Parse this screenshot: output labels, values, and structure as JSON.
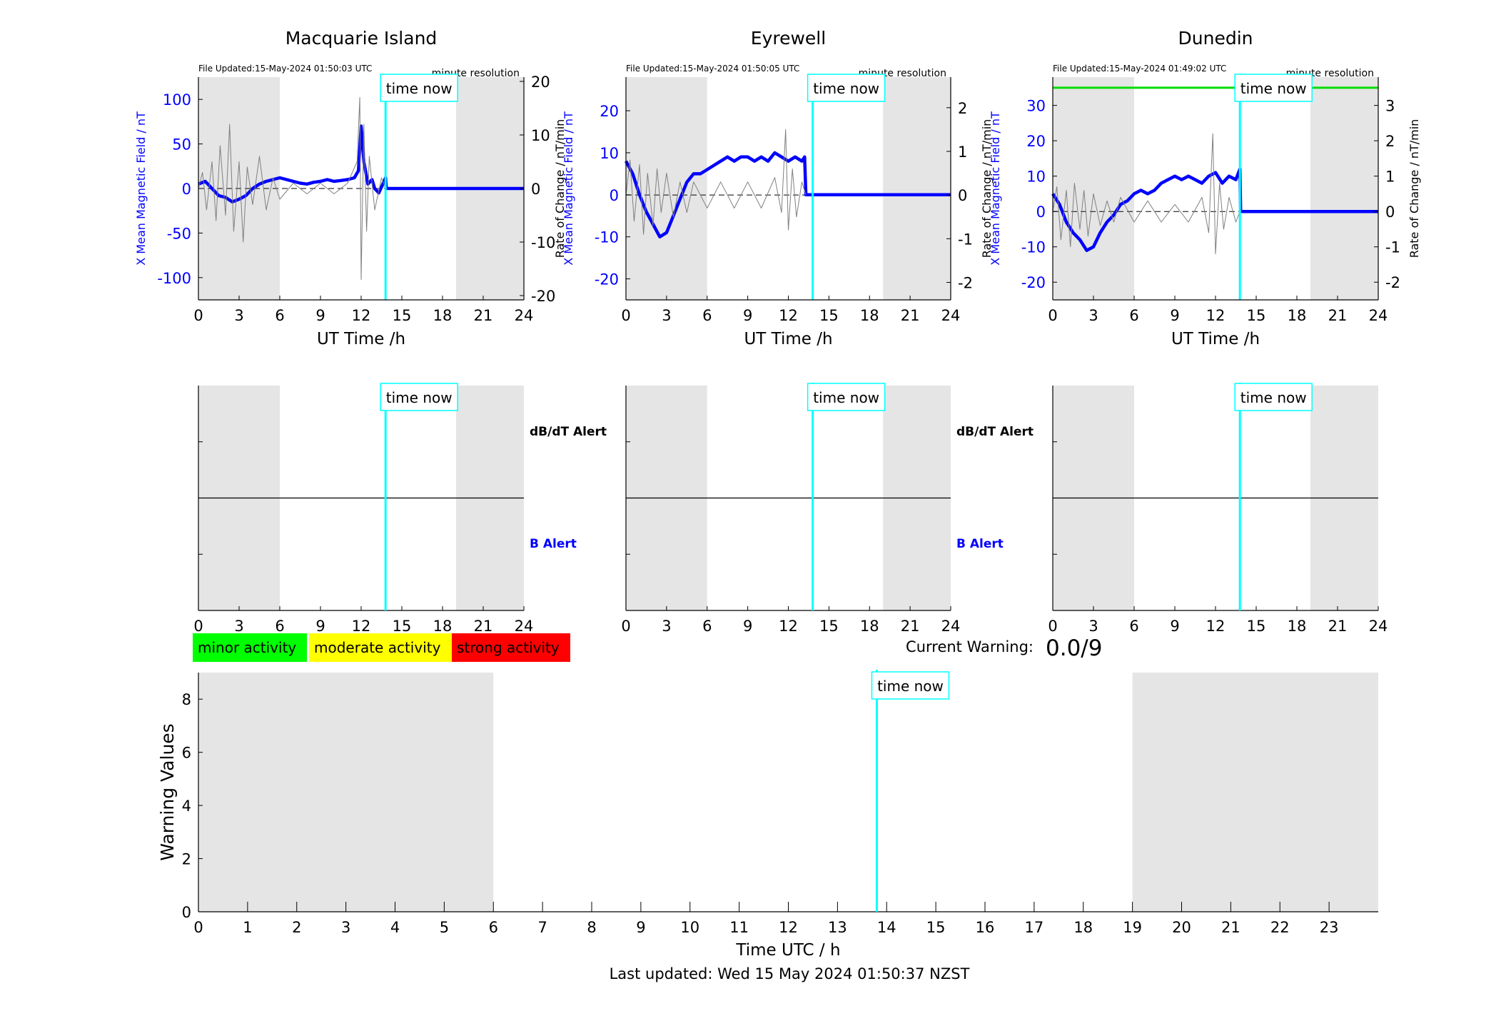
{
  "chart_data": [
    {
      "type": "line",
      "title": "Macquarie Island",
      "file_updated": "File Updated:15-May-2024 01:50:03 UTC",
      "resolution_label": "minute resolution",
      "xlabel": "UT Time /h",
      "ylabel_left": "X Mean Magnetic Field / nT",
      "ylabel_right": "Rate of Change / nT/min",
      "xlim": [
        0,
        24
      ],
      "xticks": [
        0,
        3,
        6,
        9,
        12,
        15,
        18,
        21,
        24
      ],
      "ylim_left": [
        -125,
        125
      ],
      "yticks_left": [
        -100,
        -50,
        0,
        50,
        100
      ],
      "ylim_right": [
        -20.8,
        20.8
      ],
      "yticks_right": [
        -20,
        -10,
        0,
        10,
        20
      ],
      "night_shading": [
        [
          0,
          6
        ],
        [
          19,
          24
        ]
      ],
      "time_now": 13.8,
      "time_now_label": "time now",
      "series": [
        {
          "role": "field",
          "color": "#0000ff",
          "points": [
            [
              0,
              5
            ],
            [
              0.5,
              8
            ],
            [
              1,
              0
            ],
            [
              1.5,
              -8
            ],
            [
              2,
              -10
            ],
            [
              2.5,
              -15
            ],
            [
              3,
              -12
            ],
            [
              3.5,
              -8
            ],
            [
              4,
              0
            ],
            [
              4.5,
              5
            ],
            [
              5,
              8
            ],
            [
              5.5,
              10
            ],
            [
              6,
              12
            ],
            [
              6.5,
              10
            ],
            [
              7,
              8
            ],
            [
              7.5,
              6
            ],
            [
              8,
              5
            ],
            [
              8.5,
              7
            ],
            [
              9,
              8
            ],
            [
              9.5,
              10
            ],
            [
              10,
              8
            ],
            [
              10.5,
              9
            ],
            [
              11,
              10
            ],
            [
              11.5,
              12
            ],
            [
              11.8,
              20
            ],
            [
              12,
              70
            ],
            [
              12.2,
              30
            ],
            [
              12.5,
              5
            ],
            [
              12.8,
              10
            ],
            [
              13,
              0
            ],
            [
              13.3,
              -5
            ],
            [
              13.6,
              5
            ],
            [
              13.8,
              12
            ],
            [
              13.85,
              0
            ],
            [
              24,
              0
            ]
          ]
        },
        {
          "role": "rate",
          "color": "#808080",
          "points": [
            [
              0,
              0
            ],
            [
              0.3,
              3
            ],
            [
              0.6,
              -4
            ],
            [
              1,
              5
            ],
            [
              1.3,
              -6
            ],
            [
              1.6,
              8
            ],
            [
              2,
              -5
            ],
            [
              2.3,
              12
            ],
            [
              2.6,
              -8
            ],
            [
              3,
              5
            ],
            [
              3.3,
              -10
            ],
            [
              3.6,
              4
            ],
            [
              4,
              -3
            ],
            [
              4.5,
              6
            ],
            [
              5,
              -4
            ],
            [
              5.5,
              2
            ],
            [
              6,
              -2
            ],
            [
              7,
              1
            ],
            [
              8,
              -1
            ],
            [
              9,
              1
            ],
            [
              10,
              -1
            ],
            [
              11,
              1
            ],
            [
              11.7,
              5
            ],
            [
              11.9,
              17
            ],
            [
              12,
              -17
            ],
            [
              12.2,
              12
            ],
            [
              12.4,
              -8
            ],
            [
              12.6,
              6
            ],
            [
              13,
              -4
            ],
            [
              13.5,
              2
            ],
            [
              13.8,
              0
            ]
          ]
        }
      ]
    },
    {
      "type": "line",
      "title": "Eyrewell",
      "file_updated": "File Updated:15-May-2024 01:50:05 UTC",
      "resolution_label": "minute resolution",
      "xlabel": "UT Time /h",
      "ylabel_left": "X Mean Magnetic Field / nT",
      "ylabel_right": "Rate of Change / nT/min",
      "xlim": [
        0,
        24
      ],
      "xticks": [
        0,
        3,
        6,
        9,
        12,
        15,
        18,
        21,
        24
      ],
      "ylim_left": [
        -25,
        28
      ],
      "yticks_left": [
        -20,
        -10,
        0,
        10,
        20
      ],
      "ylim_right": [
        -2.4,
        2.7
      ],
      "yticks_right": [
        -2,
        -1,
        0,
        1,
        2
      ],
      "night_shading": [
        [
          0,
          6
        ],
        [
          19,
          24
        ]
      ],
      "time_now": 13.8,
      "time_now_label": "time now",
      "series": [
        {
          "role": "field",
          "color": "#0000ff",
          "points": [
            [
              0,
              8
            ],
            [
              0.5,
              5
            ],
            [
              1,
              0
            ],
            [
              1.5,
              -4
            ],
            [
              2,
              -7
            ],
            [
              2.5,
              -10
            ],
            [
              3,
              -9
            ],
            [
              3.5,
              -5
            ],
            [
              4,
              -1
            ],
            [
              4.5,
              3
            ],
            [
              5,
              5
            ],
            [
              5.5,
              5
            ],
            [
              6,
              6
            ],
            [
              6.5,
              7
            ],
            [
              7,
              8
            ],
            [
              7.5,
              9
            ],
            [
              8,
              8
            ],
            [
              8.5,
              9
            ],
            [
              9,
              9
            ],
            [
              9.5,
              8
            ],
            [
              10,
              9
            ],
            [
              10.5,
              8
            ],
            [
              11,
              10
            ],
            [
              11.5,
              9
            ],
            [
              12,
              8
            ],
            [
              12.5,
              9
            ],
            [
              13,
              8
            ],
            [
              13.2,
              9
            ],
            [
              13.3,
              0
            ],
            [
              24,
              0
            ]
          ]
        },
        {
          "role": "rate",
          "color": "#808080",
          "points": [
            [
              0,
              0
            ],
            [
              0.3,
              0.8
            ],
            [
              0.6,
              -0.6
            ],
            [
              1,
              0.7
            ],
            [
              1.3,
              -0.9
            ],
            [
              1.6,
              0.5
            ],
            [
              2,
              -0.7
            ],
            [
              2.3,
              0.6
            ],
            [
              2.6,
              -0.4
            ],
            [
              3,
              0.5
            ],
            [
              3.5,
              -0.5
            ],
            [
              4,
              0.3
            ],
            [
              4.5,
              -0.4
            ],
            [
              5,
              0.3
            ],
            [
              6,
              -0.3
            ],
            [
              7,
              0.3
            ],
            [
              8,
              -0.3
            ],
            [
              9,
              0.3
            ],
            [
              10,
              -0.3
            ],
            [
              11,
              0.4
            ],
            [
              11.5,
              -0.4
            ],
            [
              11.8,
              1.5
            ],
            [
              12,
              -0.8
            ],
            [
              12.3,
              0.6
            ],
            [
              12.6,
              -0.5
            ],
            [
              13,
              0.3
            ],
            [
              13.3,
              0
            ]
          ]
        }
      ]
    },
    {
      "type": "line",
      "title": "Dunedin",
      "file_updated": "File Updated:15-May-2024 01:49:02 UTC",
      "resolution_label": "minute resolution",
      "xlabel": "UT Time /h",
      "ylabel_left": "X Mean Magnetic Field / nT",
      "ylabel_right": "Rate of Change / nT/min",
      "xlim": [
        0,
        24
      ],
      "xticks": [
        0,
        3,
        6,
        9,
        12,
        15,
        18,
        21,
        24
      ],
      "ylim_left": [
        -25,
        38
      ],
      "yticks_left": [
        -20,
        -10,
        0,
        10,
        20,
        30
      ],
      "ylim_right": [
        -2.5,
        3.8
      ],
      "yticks_right": [
        -2,
        -1,
        0,
        1,
        2,
        3
      ],
      "night_shading": [
        [
          0,
          6
        ],
        [
          19,
          24
        ]
      ],
      "time_now": 13.8,
      "time_now_label": "time now",
      "threshold_line": {
        "value": 35,
        "color": "#00dd00"
      },
      "series": [
        {
          "role": "field",
          "color": "#0000ff",
          "points": [
            [
              0,
              5
            ],
            [
              0.5,
              2
            ],
            [
              1,
              -3
            ],
            [
              1.5,
              -6
            ],
            [
              2,
              -8
            ],
            [
              2.5,
              -11
            ],
            [
              3,
              -10
            ],
            [
              3.5,
              -6
            ],
            [
              4,
              -3
            ],
            [
              4.5,
              -1
            ],
            [
              5,
              2
            ],
            [
              5.5,
              3
            ],
            [
              6,
              5
            ],
            [
              6.5,
              6
            ],
            [
              7,
              5
            ],
            [
              7.5,
              6
            ],
            [
              8,
              8
            ],
            [
              8.5,
              9
            ],
            [
              9,
              10
            ],
            [
              9.5,
              9
            ],
            [
              10,
              10
            ],
            [
              10.5,
              9
            ],
            [
              11,
              8
            ],
            [
              11.5,
              10
            ],
            [
              12,
              11
            ],
            [
              12.5,
              8
            ],
            [
              13,
              10
            ],
            [
              13.5,
              9
            ],
            [
              13.8,
              12
            ],
            [
              13.85,
              0
            ],
            [
              24,
              0
            ]
          ]
        },
        {
          "role": "rate",
          "color": "#808080",
          "points": [
            [
              0,
              0
            ],
            [
              0.3,
              0.7
            ],
            [
              0.6,
              -0.8
            ],
            [
              1,
              0.6
            ],
            [
              1.3,
              -1
            ],
            [
              1.6,
              0.8
            ],
            [
              2,
              -0.5
            ],
            [
              2.3,
              0.6
            ],
            [
              2.6,
              -0.7
            ],
            [
              3,
              0.5
            ],
            [
              3.5,
              -0.4
            ],
            [
              4,
              0.3
            ],
            [
              4.5,
              -0.3
            ],
            [
              5,
              0.4
            ],
            [
              6,
              -0.3
            ],
            [
              7,
              0.3
            ],
            [
              8,
              -0.3
            ],
            [
              9,
              0.2
            ],
            [
              10,
              -0.3
            ],
            [
              11,
              0.4
            ],
            [
              11.5,
              -0.6
            ],
            [
              11.8,
              2.2
            ],
            [
              12,
              -1.2
            ],
            [
              12.3,
              0.8
            ],
            [
              12.6,
              -0.5
            ],
            [
              13,
              0.4
            ],
            [
              13.5,
              -0.3
            ],
            [
              13.8,
              0
            ]
          ]
        }
      ]
    },
    {
      "type": "line",
      "panel": "alerts",
      "xlim": [
        0,
        24
      ],
      "xticks": [
        0,
        3,
        6,
        9,
        12,
        15,
        18,
        21,
        24
      ],
      "dbdt_label": "dB/dT Alert",
      "b_label": "B Alert",
      "time_now": 13.8,
      "time_now_label": "time now",
      "night_shading": [
        [
          0,
          6
        ],
        [
          19,
          24
        ]
      ]
    },
    {
      "type": "bar",
      "panel": "warning",
      "xlabel": "Time UTC / h",
      "ylabel": "Warning Values",
      "xlim": [
        0,
        24
      ],
      "xticks": [
        0,
        1,
        2,
        3,
        4,
        5,
        6,
        7,
        8,
        9,
        10,
        11,
        12,
        13,
        14,
        15,
        16,
        17,
        18,
        19,
        20,
        21,
        22,
        23
      ],
      "ylim": [
        0,
        9
      ],
      "yticks": [
        0,
        2,
        4,
        6,
        8
      ],
      "night_shading": [
        [
          0,
          6
        ],
        [
          19,
          24
        ]
      ],
      "time_now": 13.8,
      "time_now_label": "time now",
      "values": []
    }
  ],
  "legend": [
    {
      "label": "minor activity",
      "color": "#00ff00"
    },
    {
      "label": "moderate activity",
      "color": "#ffff00"
    },
    {
      "label": "strong activity",
      "color": "#ff0000"
    }
  ],
  "current_warning": {
    "label": "Current Warning:",
    "value": "0.0/9"
  },
  "footer": "Last updated: Wed 15 May 2024 01:50:37 NZST",
  "colors": {
    "night": "#e5e5e5",
    "field": "#0000ff",
    "rate": "#808080",
    "time_now": "#00ffff",
    "left_axis": "#0000ff"
  }
}
